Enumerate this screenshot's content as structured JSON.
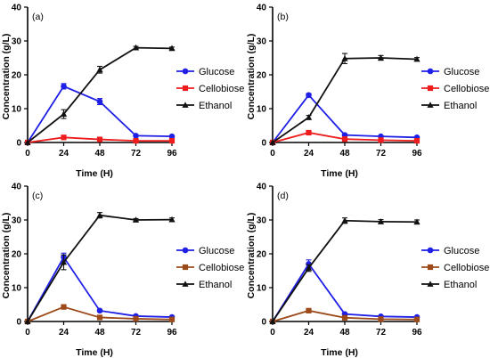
{
  "chart_data": [
    {
      "type": "line",
      "panel_label": "(a)",
      "xlabel": "Time (H)",
      "ylabel": "Concentration (g/L)",
      "x": [
        0,
        24,
        48,
        72,
        96
      ],
      "xticks": [
        "0",
        "24",
        "48",
        "72",
        "96"
      ],
      "yticks": [
        "0",
        "10",
        "20",
        "30",
        "40"
      ],
      "xlim": [
        0,
        96
      ],
      "ylim": [
        0,
        40
      ],
      "legend_position": "right",
      "series": [
        {
          "name": "Glucose",
          "color": "#1f1fe6",
          "marker": "circle",
          "values": [
            0,
            16.6,
            12.1,
            2.0,
            1.8
          ],
          "errors": [
            0,
            0.8,
            0.9,
            0.3,
            0.2
          ]
        },
        {
          "name": "Cellobiose",
          "color": "#ee1c1c",
          "marker": "square",
          "values": [
            0,
            1.5,
            0.9,
            0.5,
            0.5
          ],
          "errors": [
            0,
            0.3,
            0.2,
            0.1,
            0.1
          ]
        },
        {
          "name": "Ethanol",
          "color": "#111111",
          "marker": "triangle",
          "values": [
            0,
            8.4,
            21.5,
            28.0,
            27.8
          ],
          "errors": [
            0,
            1.3,
            1.0,
            0.4,
            0.4
          ]
        }
      ]
    },
    {
      "type": "line",
      "panel_label": "(b)",
      "xlabel": "Time (H)",
      "ylabel": "Concentration (g/L)",
      "x": [
        0,
        24,
        48,
        72,
        96
      ],
      "xticks": [
        "0",
        "24",
        "48",
        "72",
        "96"
      ],
      "yticks": [
        "0",
        "10",
        "20",
        "30",
        "40"
      ],
      "xlim": [
        0,
        96
      ],
      "ylim": [
        0,
        40
      ],
      "legend_position": "right",
      "series": [
        {
          "name": "Glucose",
          "color": "#1f1fe6",
          "marker": "circle",
          "values": [
            0,
            14.0,
            2.2,
            1.8,
            1.5
          ],
          "errors": [
            0,
            0.5,
            0.3,
            0.2,
            0.2
          ]
        },
        {
          "name": "Cellobiose",
          "color": "#ee1c1c",
          "marker": "square",
          "values": [
            0,
            2.9,
            1.0,
            0.7,
            0.5
          ],
          "errors": [
            0,
            0.3,
            0.2,
            0.1,
            0.1
          ]
        },
        {
          "name": "Ethanol",
          "color": "#111111",
          "marker": "triangle",
          "values": [
            0,
            7.4,
            24.8,
            25.0,
            24.6
          ],
          "errors": [
            0,
            0.6,
            1.5,
            0.7,
            0.5
          ]
        }
      ]
    },
    {
      "type": "line",
      "panel_label": "(c)",
      "xlabel": "Time (H)",
      "ylabel": "Concentration (g/L)",
      "x": [
        0,
        24,
        48,
        72,
        96
      ],
      "xticks": [
        "0",
        "24",
        "48",
        "72",
        "96"
      ],
      "yticks": [
        "0",
        "10",
        "20",
        "30",
        "40"
      ],
      "xlim": [
        0,
        96
      ],
      "ylim": [
        0,
        40
      ],
      "legend_position": "right",
      "series": [
        {
          "name": "Glucose",
          "color": "#1f1fe6",
          "marker": "circle",
          "values": [
            0,
            19.0,
            3.2,
            1.6,
            1.3
          ],
          "errors": [
            0,
            1.2,
            0.4,
            0.3,
            0.2
          ]
        },
        {
          "name": "Cellobiose",
          "color": "#9c4a1a",
          "marker": "square",
          "values": [
            0,
            4.3,
            1.2,
            0.8,
            0.6
          ],
          "errors": [
            0,
            0.3,
            0.2,
            0.1,
            0.1
          ]
        },
        {
          "name": "Ethanol",
          "color": "#111111",
          "marker": "triangle",
          "values": [
            0,
            17.5,
            31.4,
            30.0,
            30.1
          ],
          "errors": [
            0,
            2.2,
            0.8,
            0.4,
            0.5
          ]
        }
      ]
    },
    {
      "type": "line",
      "panel_label": "(d)",
      "xlabel": "Time (H)",
      "ylabel": "Concentration (g/L)",
      "x": [
        0,
        24,
        48,
        72,
        96
      ],
      "xticks": [
        "0",
        "24",
        "48",
        "72",
        "96"
      ],
      "yticks": [
        "0",
        "10",
        "20",
        "30",
        "40"
      ],
      "xlim": [
        0,
        96
      ],
      "ylim": [
        0,
        40
      ],
      "legend_position": "right",
      "series": [
        {
          "name": "Glucose",
          "color": "#1f1fe6",
          "marker": "circle",
          "values": [
            0,
            17.0,
            2.2,
            1.5,
            1.3
          ],
          "errors": [
            0,
            1.2,
            0.3,
            0.2,
            0.2
          ]
        },
        {
          "name": "Cellobiose",
          "color": "#9c4a1a",
          "marker": "square",
          "values": [
            0,
            3.2,
            1.1,
            0.7,
            0.6
          ],
          "errors": [
            0,
            0.3,
            0.2,
            0.1,
            0.1
          ]
        },
        {
          "name": "Ethanol",
          "color": "#111111",
          "marker": "triangle",
          "values": [
            0,
            15.8,
            29.8,
            29.5,
            29.4
          ],
          "errors": [
            0,
            1.0,
            0.8,
            0.6,
            0.6
          ]
        }
      ]
    }
  ]
}
